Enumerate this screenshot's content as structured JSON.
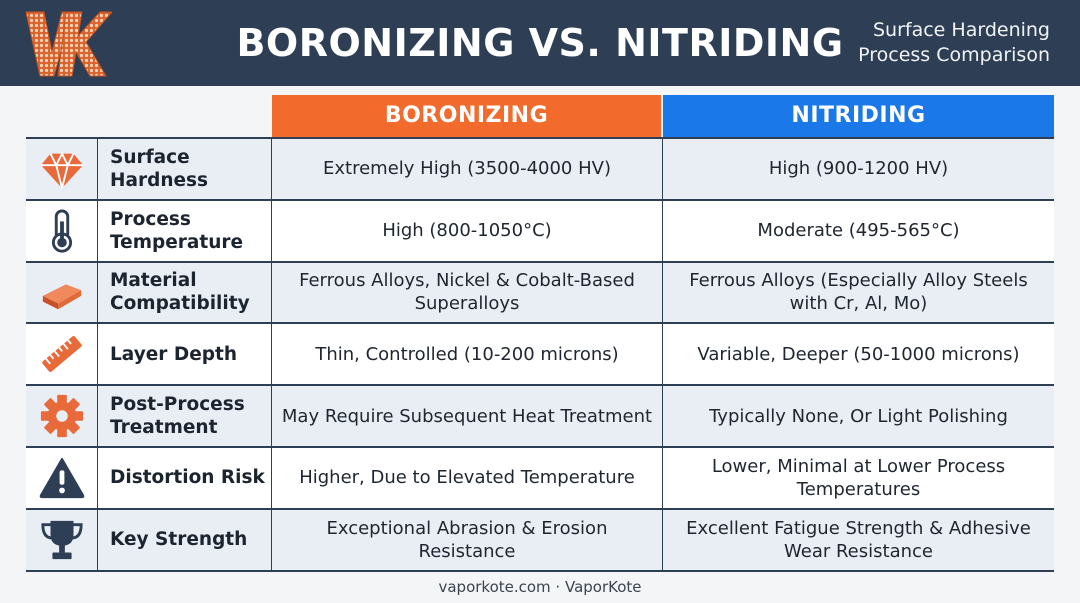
{
  "header": {
    "title": "BORONIZING VS. NITRIDING",
    "subtitle_line1": "Surface Hardening",
    "subtitle_line2": "Process Comparison",
    "logo": "VK"
  },
  "columns": {
    "boronizing": "BORONIZING",
    "nitriding": "NITRIDING"
  },
  "colors": {
    "header_bg": "#2e3f55",
    "boronizing_accent": "#f26a2c",
    "nitriding_accent": "#1a78e8",
    "icon_orange": "#e8693a",
    "icon_navy": "#2e3f55"
  },
  "rows": [
    {
      "icon": "diamond-icon",
      "label_line1": "Surface",
      "label_line2": "Hardness",
      "boronizing": "Extremely High (3500-4000 HV)",
      "nitriding": "High (900-1200 HV)"
    },
    {
      "icon": "thermometer-icon",
      "label_line1": "Process",
      "label_line2": "Temperature",
      "boronizing": "High (800-1050°C)",
      "nitriding": "Moderate (495-565°C)"
    },
    {
      "icon": "metal-plate-icon",
      "label_line1": "Material",
      "label_line2": "Compatibility",
      "boronizing": "Ferrous Alloys, Nickel & Cobalt-Based Superalloys",
      "nitriding": "Ferrous Alloys (Especially Alloy Steels with Cr, Al, Mo)"
    },
    {
      "icon": "ruler-icon",
      "label_line1": "Layer Depth",
      "label_line2": "",
      "boronizing": "Thin, Controlled (10-200 microns)",
      "nitriding": "Variable, Deeper (50-1000 microns)"
    },
    {
      "icon": "gear-icon",
      "label_line1": "Post-Process",
      "label_line2": "Treatment",
      "boronizing": "May Require Subsequent Heat Treatment",
      "nitriding": "Typically None, Or Light Polishing"
    },
    {
      "icon": "warning-icon",
      "label_line1": "Distortion Risk",
      "label_line2": "",
      "boronizing": "Higher, Due to Elevated Temperature",
      "nitriding": "Lower, Minimal at Lower Process Temperatures"
    },
    {
      "icon": "trophy-icon",
      "label_line1": "Key Strength",
      "label_line2": "",
      "boronizing": "Exceptional Abrasion & Erosion Resistance",
      "nitriding": "Excellent Fatigue Strength & Adhesive Wear Resistance"
    }
  ],
  "footer": "vaporkote.com · VaporKote"
}
